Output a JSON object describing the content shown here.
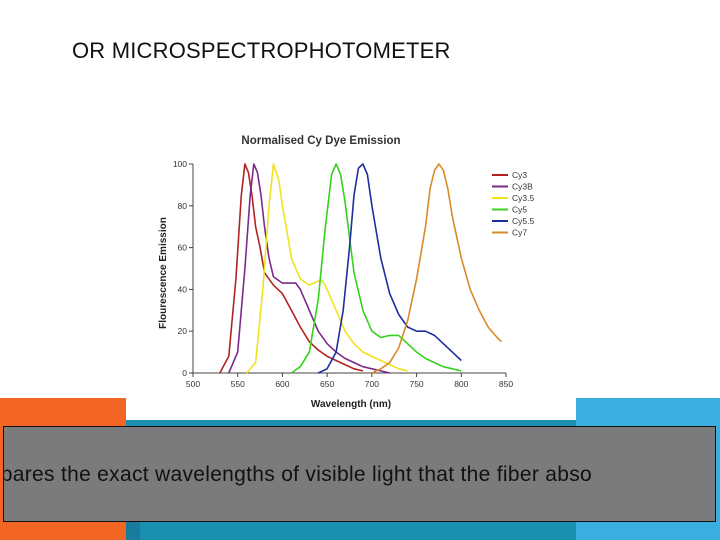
{
  "slide": {
    "title": "OR MICROSPECTROPHOTOMETER",
    "caption": "mpares the exact wavelengths of visible light that the fiber abso"
  },
  "colors": {
    "orange_accent": "#f26522",
    "teal_band": "#1a8fb0",
    "blue_accent": "#3aafdf",
    "caption_bg": "#7a7b7d"
  },
  "chart_data": {
    "type": "line",
    "title": "Normalised Cy Dye Emission",
    "xlabel": "Wavelength (nm)",
    "ylabel": "Flourescence Emission",
    "xlim": [
      500,
      850
    ],
    "ylim": [
      0,
      100
    ],
    "xticks": [
      500,
      550,
      600,
      650,
      700,
      750,
      800,
      850
    ],
    "yticks": [
      0,
      20,
      40,
      60,
      80,
      100
    ],
    "grid": false,
    "legend_position": "top-right",
    "series": [
      {
        "name": "Cy3",
        "color": "#b22222",
        "x": [
          530,
          540,
          548,
          554,
          558,
          562,
          566,
          570,
          575,
          580,
          590,
          600,
          610,
          620,
          630,
          640,
          650,
          660,
          670,
          680,
          690
        ],
        "y": [
          0,
          8,
          45,
          85,
          100,
          96,
          85,
          70,
          60,
          48,
          42,
          38,
          30,
          22,
          15,
          11,
          8,
          6,
          4,
          2,
          1
        ]
      },
      {
        "name": "Cy3B",
        "color": "#7b2a8c",
        "x": [
          540,
          550,
          558,
          564,
          568,
          572,
          576,
          580,
          585,
          590,
          600,
          610,
          615,
          620,
          630,
          640,
          650,
          660,
          670,
          680,
          690,
          700,
          710,
          720
        ],
        "y": [
          0,
          10,
          50,
          85,
          100,
          96,
          85,
          70,
          55,
          46,
          43,
          43,
          43,
          40,
          30,
          20,
          14,
          10,
          7,
          5,
          3,
          2,
          1,
          0
        ]
      },
      {
        "name": "Cy3.5",
        "color": "#f2e21a",
        "x": [
          560,
          570,
          578,
          585,
          590,
          596,
          600,
          605,
          610,
          620,
          630,
          640,
          645,
          650,
          660,
          670,
          680,
          690,
          700,
          710,
          720,
          730,
          740
        ],
        "y": [
          0,
          5,
          40,
          80,
          100,
          92,
          80,
          68,
          55,
          45,
          42,
          44,
          44,
          40,
          30,
          20,
          14,
          10,
          8,
          6,
          4,
          2,
          1
        ]
      },
      {
        "name": "Cy5",
        "color": "#37d11e",
        "x": [
          610,
          620,
          630,
          640,
          648,
          655,
          660,
          665,
          670,
          675,
          680,
          690,
          700,
          710,
          720,
          730,
          740,
          750,
          760,
          770,
          780,
          790,
          800
        ],
        "y": [
          0,
          3,
          10,
          35,
          70,
          95,
          100,
          95,
          82,
          65,
          48,
          30,
          20,
          17,
          18,
          18,
          14,
          10,
          7,
          5,
          3,
          2,
          1
        ]
      },
      {
        "name": "Cy5.5",
        "color": "#1f2e9e",
        "x": [
          640,
          650,
          660,
          668,
          675,
          680,
          685,
          690,
          695,
          700,
          710,
          720,
          730,
          740,
          750,
          760,
          770,
          780,
          790,
          800
        ],
        "y": [
          0,
          2,
          10,
          30,
          60,
          85,
          98,
          100,
          95,
          80,
          55,
          38,
          28,
          22,
          20,
          20,
          18,
          14,
          10,
          6
        ]
      },
      {
        "name": "Cy7",
        "color": "#d98a2a",
        "x": [
          700,
          710,
          720,
          730,
          740,
          750,
          760,
          765,
          770,
          775,
          780,
          785,
          790,
          800,
          810,
          820,
          830,
          840,
          845
        ],
        "y": [
          0,
          2,
          5,
          12,
          25,
          45,
          70,
          88,
          97,
          100,
          97,
          88,
          75,
          55,
          40,
          30,
          22,
          17,
          15
        ]
      }
    ]
  }
}
